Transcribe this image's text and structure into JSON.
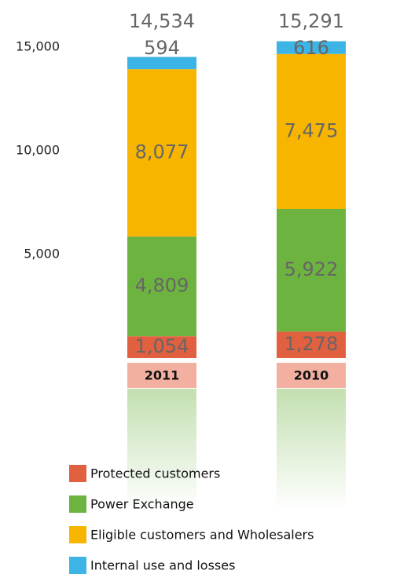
{
  "chart_data": {
    "type": "stacked_bar",
    "categories": [
      "2011",
      "2010"
    ],
    "series": [
      {
        "name": "Protected customers",
        "color": "#e0603f",
        "values": [
          1054,
          1278
        ],
        "value_labels": [
          "1,054",
          "1,278"
        ]
      },
      {
        "name": "Power Exchange",
        "color": "#6db33f",
        "values": [
          4809,
          5922
        ],
        "value_labels": [
          "4,809",
          "5,922"
        ]
      },
      {
        "name": "Eligible customers and Wholesalers",
        "color": "#f7b500",
        "values": [
          8077,
          7475
        ],
        "value_labels": [
          "8,077",
          "7,475"
        ]
      },
      {
        "name": "Internal use and losses",
        "color": "#3cb4e5",
        "values": [
          594,
          616
        ],
        "value_labels": [
          "594",
          "616"
        ]
      }
    ],
    "totals": [
      14534,
      15291
    ],
    "total_labels": [
      "14,534",
      "15,291"
    ],
    "ylim": [
      0,
      15500
    ],
    "yticks": [
      {
        "value": 5000,
        "label": "5,000"
      },
      {
        "value": 10000,
        "label": "10,000"
      },
      {
        "value": 15000,
        "label": "15,000"
      }
    ],
    "grid": true
  }
}
